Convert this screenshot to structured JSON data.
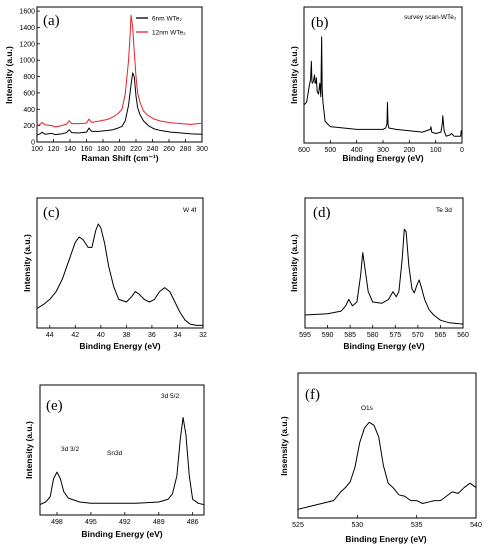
{
  "chart_data": [
    {
      "id": "a",
      "type": "line",
      "panel_label": "(a)",
      "xlabel": "Raman Shift (cm⁻¹)",
      "ylabel": "Intensity (a.u.)",
      "xlim": [
        100,
        300
      ],
      "ylim": [
        0,
        1650
      ],
      "x_ticks": [
        "100",
        "120",
        "140",
        "160",
        "180",
        "200",
        "220",
        "240",
        "260",
        "280",
        "300"
      ],
      "y_ticks": [
        "0",
        "200",
        "400",
        "600",
        "800",
        "1000",
        "1200",
        "1400",
        "1600"
      ],
      "legend": "top-right",
      "series": [
        {
          "name": "6nm WTe₂",
          "color": "#000000",
          "points": [
            [
              100,
              85
            ],
            [
              104,
              100
            ],
            [
              106,
              120
            ],
            [
              110,
              95
            ],
            [
              118,
              105
            ],
            [
              122,
              90
            ],
            [
              130,
              100
            ],
            [
              136,
              115
            ],
            [
              139,
              150
            ],
            [
              142,
              115
            ],
            [
              150,
              110
            ],
            [
              160,
              120
            ],
            [
              163,
              170
            ],
            [
              166,
              130
            ],
            [
              175,
              130
            ],
            [
              185,
              140
            ],
            [
              192,
              150
            ],
            [
              198,
              170
            ],
            [
              203,
              190
            ],
            [
              207,
              260
            ],
            [
              211,
              450
            ],
            [
              214,
              700
            ],
            [
              216,
              845
            ],
            [
              218,
              790
            ],
            [
              220,
              560
            ],
            [
              222,
              420
            ],
            [
              225,
              330
            ],
            [
              229,
              260
            ],
            [
              235,
              200
            ],
            [
              242,
              160
            ],
            [
              250,
              140
            ],
            [
              262,
              120
            ],
            [
              275,
              110
            ],
            [
              287,
              100
            ],
            [
              300,
              95
            ]
          ]
        },
        {
          "name": "12nm WTe₂",
          "color": "#e8202a",
          "points": [
            [
              100,
              200
            ],
            [
              104,
              215
            ],
            [
              106,
              240
            ],
            [
              110,
              210
            ],
            [
              118,
              200
            ],
            [
              122,
              185
            ],
            [
              130,
              200
            ],
            [
              136,
              220
            ],
            [
              139,
              260
            ],
            [
              142,
              225
            ],
            [
              150,
              225
            ],
            [
              160,
              230
            ],
            [
              163,
              280
            ],
            [
              166,
              240
            ],
            [
              175,
              255
            ],
            [
              185,
              275
            ],
            [
              192,
              305
            ],
            [
              198,
              345
            ],
            [
              203,
              400
            ],
            [
              207,
              590
            ],
            [
              211,
              1000
            ],
            [
              213,
              1340
            ],
            [
              214,
              1550
            ],
            [
              216,
              1400
            ],
            [
              218,
              1090
            ],
            [
              220,
              800
            ],
            [
              222,
              600
            ],
            [
              225,
              480
            ],
            [
              229,
              380
            ],
            [
              235,
              320
            ],
            [
              242,
              280
            ],
            [
              250,
              255
            ],
            [
              262,
              235
            ],
            [
              275,
              225
            ],
            [
              287,
              215
            ],
            [
              300,
              230
            ]
          ]
        }
      ]
    },
    {
      "id": "b",
      "type": "line",
      "panel_label": "(b)",
      "annotation": "survey scan-WTe₂",
      "xlabel": "Binding Energy (eV)",
      "ylabel": "Intensity (a.u.)",
      "xlim": [
        600,
        0
      ],
      "ylim": [
        0,
        100
      ],
      "x_ticks": [
        "600",
        "500",
        "400",
        "300",
        "200",
        "100",
        "0"
      ],
      "series": [
        {
          "color": "#000000",
          "points": [
            [
              600,
              28
            ],
            [
              590,
              30
            ],
            [
              580,
              42
            ],
            [
              575,
              47
            ],
            [
              572,
              60
            ],
            [
              570,
              45
            ],
            [
              568,
              44
            ],
            [
              565,
              45
            ],
            [
              562,
              48
            ],
            [
              560,
              50
            ],
            [
              558,
              44
            ],
            [
              555,
              44
            ],
            [
              553,
              48
            ],
            [
              550,
              38
            ],
            [
              545,
              36
            ],
            [
              540,
              44
            ],
            [
              536,
              34
            ],
            [
              533,
              78
            ],
            [
              531,
              40
            ],
            [
              528,
              30
            ],
            [
              520,
              16
            ],
            [
              500,
              12
            ],
            [
              450,
              11
            ],
            [
              400,
              10
            ],
            [
              350,
              10
            ],
            [
              300,
              10
            ],
            [
              290,
              11
            ],
            [
              285,
              14
            ],
            [
              283,
              30
            ],
            [
              281,
              14
            ],
            [
              278,
              11
            ],
            [
              250,
              10
            ],
            [
              200,
              9
            ],
            [
              150,
              8
            ],
            [
              120,
              10
            ],
            [
              118,
              12
            ],
            [
              115,
              8
            ],
            [
              100,
              7
            ],
            [
              80,
              8
            ],
            [
              75,
              14
            ],
            [
              73,
              20
            ],
            [
              71,
              16
            ],
            [
              68,
              9
            ],
            [
              60,
              5
            ],
            [
              45,
              6
            ],
            [
              40,
              7
            ],
            [
              30,
              5
            ],
            [
              15,
              5
            ],
            [
              5,
              5
            ],
            [
              3,
              9
            ],
            [
              0,
              7
            ]
          ]
        }
      ]
    },
    {
      "id": "c",
      "type": "line",
      "panel_label": "(c)",
      "annotation": "W 4f",
      "xlabel": "Binding Energy (eV)",
      "ylabel": "Intensity (a.u.)",
      "xlim": [
        45,
        32
      ],
      "ylim": [
        0,
        100
      ],
      "x_ticks": [
        "44",
        "42",
        "40",
        "38",
        "36",
        "34",
        "32"
      ],
      "series": [
        {
          "color": "#000000",
          "points": [
            [
              45,
              15
            ],
            [
              44.5,
              18
            ],
            [
              44,
              22
            ],
            [
              43.5,
              28
            ],
            [
              43,
              38
            ],
            [
              42.5,
              52
            ],
            [
              42,
              66
            ],
            [
              41.7,
              70
            ],
            [
              41.4,
              68
            ],
            [
              41,
              62
            ],
            [
              40.7,
              62
            ],
            [
              40.4,
              75
            ],
            [
              40.2,
              80
            ],
            [
              40,
              77
            ],
            [
              39.7,
              65
            ],
            [
              39.4,
              48
            ],
            [
              39,
              32
            ],
            [
              38.6,
              22
            ],
            [
              38,
              20
            ],
            [
              37.6,
              24
            ],
            [
              37.3,
              28
            ],
            [
              37,
              26
            ],
            [
              36.6,
              22
            ],
            [
              36.2,
              20
            ],
            [
              35.8,
              22
            ],
            [
              35.4,
              28
            ],
            [
              35,
              31
            ],
            [
              34.6,
              28
            ],
            [
              34.2,
              20
            ],
            [
              33.8,
              12
            ],
            [
              33.4,
              6
            ],
            [
              33,
              3
            ],
            [
              32.5,
              2
            ],
            [
              32,
              2
            ]
          ]
        }
      ]
    },
    {
      "id": "d",
      "type": "line",
      "panel_label": "(d)",
      "annotation": "Te 3d",
      "xlabel": "Binding Energy (eV)",
      "ylabel": "Intensity (a.u.)",
      "xlim": [
        595,
        560
      ],
      "ylim": [
        0,
        100
      ],
      "x_ticks": [
        "595",
        "590",
        "585",
        "580",
        "575",
        "570",
        "565",
        "560"
      ],
      "series": [
        {
          "color": "#000000",
          "points": [
            [
              595,
              10
            ],
            [
              590,
              11
            ],
            [
              587,
              13
            ],
            [
              586,
              17
            ],
            [
              585.3,
              22
            ],
            [
              584.5,
              17
            ],
            [
              583.5,
              20
            ],
            [
              582.7,
              40
            ],
            [
              582.2,
              58
            ],
            [
              581.8,
              48
            ],
            [
              581,
              28
            ],
            [
              580,
              20
            ],
            [
              578,
              19
            ],
            [
              576.5,
              22
            ],
            [
              575.5,
              28
            ],
            [
              574.8,
              24
            ],
            [
              574.2,
              28
            ],
            [
              573.5,
              52
            ],
            [
              573,
              76
            ],
            [
              572.6,
              74
            ],
            [
              572,
              48
            ],
            [
              571.3,
              30
            ],
            [
              570.8,
              27
            ],
            [
              570.2,
              33
            ],
            [
              569.7,
              37
            ],
            [
              569.2,
              31
            ],
            [
              568.5,
              22
            ],
            [
              567.5,
              14
            ],
            [
              566.5,
              10
            ],
            [
              565,
              6
            ],
            [
              563,
              4
            ],
            [
              560,
              3
            ]
          ]
        }
      ]
    },
    {
      "id": "e",
      "type": "line",
      "panel_label": "(e)",
      "annotations": [
        "3d 5/2",
        "3d 3/2",
        "Sn3d"
      ],
      "xlabel": "Binding Energy (eV)",
      "ylabel": "Intensity (a.u.)",
      "xlim": [
        499.5,
        485
      ],
      "ylim": [
        0,
        100
      ],
      "x_ticks": [
        "498",
        "495",
        "492",
        "489",
        "486"
      ],
      "series": [
        {
          "color": "#000000",
          "points": [
            [
              499.5,
              8
            ],
            [
              499,
              10
            ],
            [
              498.6,
              14
            ],
            [
              498.3,
              28
            ],
            [
              498,
              33
            ],
            [
              497.7,
              28
            ],
            [
              497.4,
              18
            ],
            [
              497,
              13
            ],
            [
              496,
              10
            ],
            [
              495,
              9
            ],
            [
              493,
              9
            ],
            [
              491,
              9
            ],
            [
              490,
              9.5
            ],
            [
              489,
              10
            ],
            [
              488.2,
              12
            ],
            [
              487.8,
              16
            ],
            [
              487.4,
              30
            ],
            [
              487.1,
              58
            ],
            [
              486.85,
              75
            ],
            [
              486.6,
              62
            ],
            [
              486.3,
              30
            ],
            [
              486,
              12
            ],
            [
              485.5,
              9
            ],
            [
              485,
              8
            ]
          ]
        }
      ]
    },
    {
      "id": "f",
      "type": "line",
      "panel_label": "(f)",
      "annotation": "O1s",
      "xlabel": "Binding Energy (eV)",
      "ylabel": "Insensity (a.u.)",
      "xlim": [
        525,
        540
      ],
      "ylim": [
        0,
        100
      ],
      "x_ticks": [
        "525",
        "530",
        "535",
        "540"
      ],
      "series": [
        {
          "color": "#000000",
          "points": [
            [
              525,
              6
            ],
            [
              526,
              8
            ],
            [
              527,
              10
            ],
            [
              528,
              12
            ],
            [
              528.6,
              18
            ],
            [
              529,
              21
            ],
            [
              529.4,
              25
            ],
            [
              529.8,
              35
            ],
            [
              530.2,
              52
            ],
            [
              530.6,
              62
            ],
            [
              531,
              66
            ],
            [
              531.4,
              64
            ],
            [
              531.8,
              56
            ],
            [
              532.2,
              36
            ],
            [
              532.6,
              24
            ],
            [
              533,
              21
            ],
            [
              533.5,
              16
            ],
            [
              534,
              15
            ],
            [
              534.5,
              12
            ],
            [
              535,
              12
            ],
            [
              535.5,
              10
            ],
            [
              536,
              11
            ],
            [
              536.5,
              12
            ],
            [
              537,
              12
            ],
            [
              537.5,
              15
            ],
            [
              538,
              18
            ],
            [
              538.5,
              17
            ],
            [
              539,
              21
            ],
            [
              539.5,
              24
            ],
            [
              540,
              21
            ]
          ]
        }
      ]
    }
  ]
}
